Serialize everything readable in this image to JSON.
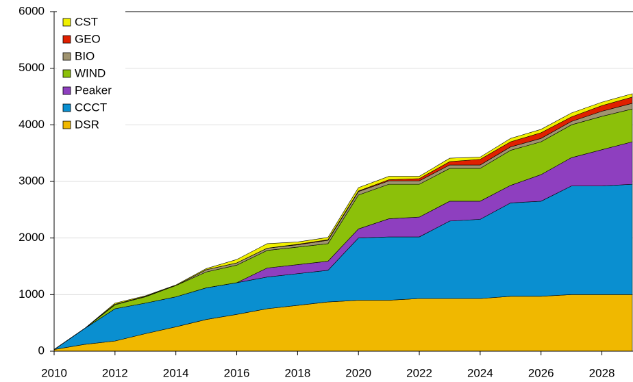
{
  "chart_data": {
    "type": "stacked-area",
    "x": [
      2010,
      2011,
      2012,
      2013,
      2014,
      2015,
      2016,
      2017,
      2018,
      2019,
      2020,
      2021,
      2022,
      2023,
      2024,
      2025,
      2026,
      2027,
      2028,
      2029
    ],
    "xlim": [
      2010,
      2029
    ],
    "xticks": [
      2010,
      2012,
      2014,
      2016,
      2018,
      2020,
      2022,
      2024,
      2026,
      2028
    ],
    "ylim": [
      0,
      6000
    ],
    "yticks": [
      0,
      1000,
      2000,
      3000,
      4000,
      5000,
      6000
    ],
    "grid": true,
    "series": [
      {
        "name": "DSR",
        "color": "#f0b800",
        "values": [
          30,
          120,
          180,
          310,
          430,
          560,
          650,
          750,
          810,
          870,
          900,
          900,
          930,
          930,
          930,
          970,
          970,
          1000,
          1000,
          1000
        ]
      },
      {
        "name": "CCCT",
        "color": "#0a8fd0",
        "values": [
          0,
          280,
          570,
          540,
          530,
          560,
          560,
          560,
          560,
          560,
          1100,
          1120,
          1090,
          1370,
          1400,
          1650,
          1680,
          1920,
          1920,
          1950
        ]
      },
      {
        "name": "Peaker",
        "color": "#8e3fbf",
        "values": [
          0,
          0,
          0,
          0,
          0,
          0,
          0,
          160,
          160,
          160,
          160,
          320,
          350,
          350,
          320,
          310,
          470,
          500,
          640,
          750
        ]
      },
      {
        "name": "WIND",
        "color": "#8cc00a",
        "values": [
          0,
          0,
          70,
          110,
          200,
          280,
          310,
          310,
          310,
          310,
          600,
          610,
          580,
          580,
          580,
          620,
          580,
          580,
          590,
          580
        ]
      },
      {
        "name": "BIO",
        "color": "#a09470",
        "values": [
          0,
          0,
          10,
          10,
          0,
          40,
          40,
          40,
          40,
          60,
          60,
          60,
          60,
          60,
          60,
          60,
          60,
          60,
          90,
          100
        ]
      },
      {
        "name": "GEO",
        "color": "#e02000",
        "values": [
          0,
          0,
          0,
          0,
          0,
          0,
          0,
          0,
          10,
          10,
          10,
          20,
          40,
          60,
          100,
          90,
          100,
          80,
          100,
          110
        ]
      },
      {
        "name": "CST",
        "color": "#f0f000",
        "values": [
          0,
          0,
          20,
          10,
          10,
          20,
          60,
          80,
          40,
          40,
          60,
          60,
          40,
          60,
          40,
          60,
          60,
          70,
          60,
          60
        ]
      }
    ]
  }
}
